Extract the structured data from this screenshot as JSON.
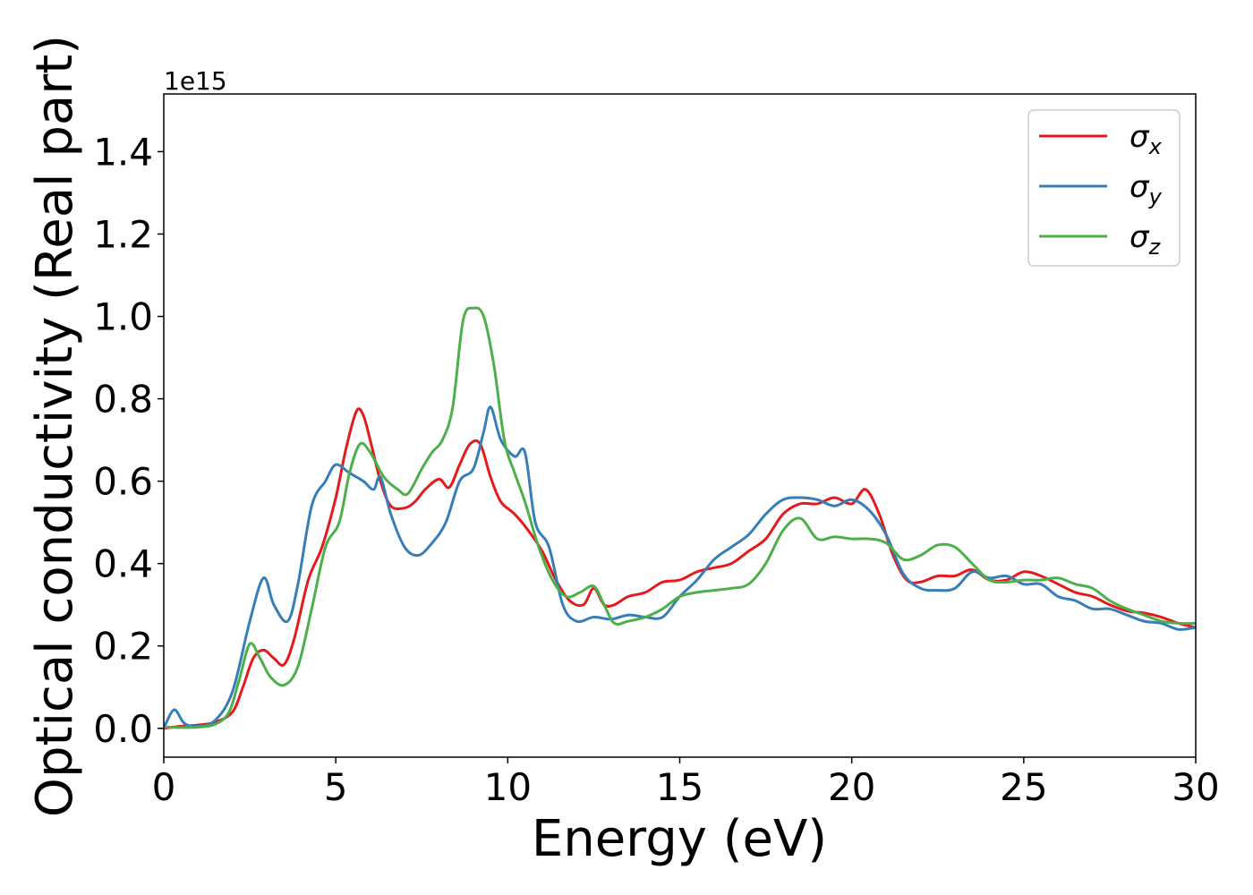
{
  "chart_data": {
    "type": "line",
    "title": "",
    "xlabel": "Energy (eV)",
    "ylabel": "Optical conductivity (Real part)",
    "y_offset_text": "1e15",
    "y_multiplier": 1000000000000000.0,
    "xlim": [
      0,
      30
    ],
    "ylim": [
      -0.07,
      1.54
    ],
    "x_ticks": [
      0,
      5,
      10,
      15,
      20,
      25,
      30
    ],
    "x_tick_labels": [
      "0",
      "5",
      "10",
      "15",
      "20",
      "25",
      "30"
    ],
    "y_ticks": [
      0.0,
      0.2,
      0.4,
      0.6,
      0.8,
      1.0,
      1.2,
      1.4
    ],
    "y_tick_labels": [
      "0.0",
      "0.2",
      "0.4",
      "0.6",
      "0.8",
      "1.0",
      "1.2",
      "1.4"
    ],
    "grid": false,
    "legend_position": "top-right",
    "series": [
      {
        "name": "σx",
        "legend_base": "σ",
        "legend_sub": "x",
        "color": "#e41a1c",
        "x": [
          0,
          0.5,
          1,
          1.5,
          2,
          2.3,
          2.6,
          2.9,
          3.2,
          3.5,
          3.8,
          4.2,
          4.6,
          5.0,
          5.3,
          5.6,
          5.8,
          6.0,
          6.3,
          6.6,
          7.0,
          7.3,
          7.6,
          8.0,
          8.3,
          8.6,
          8.9,
          9.2,
          9.5,
          9.8,
          10.2,
          10.6,
          11.0,
          11.4,
          11.8,
          12.2,
          12.5,
          12.8,
          13.1,
          13.5,
          14.0,
          14.5,
          15.0,
          15.5,
          16.0,
          16.5,
          17.0,
          17.5,
          18.0,
          18.5,
          19.0,
          19.5,
          20.0,
          20.4,
          20.8,
          21.2,
          21.6,
          22.0,
          22.5,
          23.0,
          23.5,
          24.0,
          24.5,
          25.0,
          25.5,
          26.0,
          26.5,
          27.0,
          27.5,
          28.0,
          28.5,
          29.0,
          29.5,
          30.0
        ],
        "y": [
          0.0,
          0.005,
          0.008,
          0.015,
          0.04,
          0.1,
          0.17,
          0.19,
          0.17,
          0.155,
          0.22,
          0.36,
          0.44,
          0.56,
          0.68,
          0.77,
          0.76,
          0.7,
          0.6,
          0.54,
          0.535,
          0.55,
          0.58,
          0.605,
          0.585,
          0.64,
          0.69,
          0.69,
          0.61,
          0.55,
          0.52,
          0.48,
          0.43,
          0.36,
          0.31,
          0.3,
          0.34,
          0.3,
          0.3,
          0.32,
          0.33,
          0.355,
          0.36,
          0.38,
          0.39,
          0.4,
          0.43,
          0.46,
          0.52,
          0.545,
          0.545,
          0.56,
          0.545,
          0.58,
          0.52,
          0.42,
          0.36,
          0.355,
          0.37,
          0.37,
          0.385,
          0.36,
          0.36,
          0.38,
          0.37,
          0.35,
          0.33,
          0.32,
          0.3,
          0.285,
          0.28,
          0.27,
          0.255,
          0.245
        ]
      },
      {
        "name": "σy",
        "legend_base": "σ",
        "legend_sub": "y",
        "color": "#377eb8",
        "x": [
          0,
          0.3,
          0.6,
          1.0,
          1.5,
          2.0,
          2.5,
          2.9,
          3.2,
          3.6,
          3.9,
          4.3,
          4.7,
          5.0,
          5.4,
          5.8,
          6.1,
          6.3,
          6.6,
          7.0,
          7.4,
          7.8,
          8.2,
          8.6,
          9.0,
          9.3,
          9.5,
          9.8,
          10.2,
          10.5,
          10.8,
          11.2,
          11.6,
          12.0,
          12.5,
          13.0,
          13.5,
          14.0,
          14.5,
          15.0,
          15.5,
          16.0,
          16.5,
          17.0,
          17.5,
          18.0,
          18.5,
          19.0,
          19.5,
          20.0,
          20.5,
          21.0,
          21.5,
          22.0,
          22.5,
          23.0,
          23.5,
          24.0,
          24.5,
          25.0,
          25.5,
          26.0,
          26.5,
          27.0,
          27.5,
          28.0,
          28.5,
          29.0,
          29.5,
          30.0
        ],
        "y": [
          0.0,
          0.045,
          0.012,
          0.005,
          0.02,
          0.09,
          0.26,
          0.365,
          0.3,
          0.26,
          0.35,
          0.54,
          0.6,
          0.64,
          0.62,
          0.6,
          0.58,
          0.61,
          0.52,
          0.44,
          0.42,
          0.45,
          0.5,
          0.6,
          0.63,
          0.72,
          0.78,
          0.7,
          0.66,
          0.67,
          0.5,
          0.44,
          0.3,
          0.26,
          0.27,
          0.265,
          0.275,
          0.27,
          0.27,
          0.32,
          0.36,
          0.41,
          0.44,
          0.47,
          0.52,
          0.555,
          0.56,
          0.555,
          0.54,
          0.555,
          0.53,
          0.47,
          0.375,
          0.34,
          0.335,
          0.34,
          0.38,
          0.365,
          0.37,
          0.35,
          0.35,
          0.32,
          0.31,
          0.29,
          0.29,
          0.275,
          0.26,
          0.255,
          0.24,
          0.245
        ]
      },
      {
        "name": "σz",
        "legend_base": "σ",
        "legend_sub": "z",
        "color": "#4daf4a",
        "x": [
          0,
          0.5,
          1,
          1.5,
          1.9,
          2.2,
          2.5,
          2.8,
          3.1,
          3.5,
          3.9,
          4.3,
          4.7,
          5.1,
          5.4,
          5.7,
          6.0,
          6.4,
          6.8,
          7.1,
          7.5,
          7.8,
          8.1,
          8.4,
          8.7,
          9.0,
          9.3,
          9.6,
          9.9,
          10.2,
          10.5,
          10.9,
          11.3,
          11.7,
          12.1,
          12.5,
          12.8,
          13.1,
          13.5,
          14.0,
          14.5,
          15.0,
          15.5,
          16.0,
          16.5,
          17.0,
          17.5,
          18.0,
          18.5,
          19.0,
          19.5,
          20.0,
          20.5,
          21.0,
          21.5,
          22.0,
          22.5,
          23.0,
          23.5,
          24.0,
          24.5,
          25.0,
          25.5,
          26.0,
          26.5,
          27.0,
          27.5,
          28.0,
          28.5,
          29.0,
          29.5,
          30.0
        ],
        "y": [
          0.003,
          0.002,
          0.003,
          0.01,
          0.04,
          0.12,
          0.205,
          0.17,
          0.125,
          0.105,
          0.15,
          0.29,
          0.44,
          0.5,
          0.62,
          0.69,
          0.67,
          0.61,
          0.58,
          0.57,
          0.63,
          0.67,
          0.7,
          0.78,
          0.99,
          1.02,
          1.0,
          0.88,
          0.7,
          0.62,
          0.55,
          0.44,
          0.36,
          0.32,
          0.33,
          0.345,
          0.3,
          0.255,
          0.26,
          0.27,
          0.29,
          0.32,
          0.33,
          0.335,
          0.34,
          0.35,
          0.4,
          0.48,
          0.51,
          0.46,
          0.465,
          0.46,
          0.46,
          0.45,
          0.41,
          0.42,
          0.445,
          0.44,
          0.4,
          0.36,
          0.355,
          0.36,
          0.36,
          0.365,
          0.35,
          0.34,
          0.31,
          0.29,
          0.275,
          0.26,
          0.255,
          0.255
        ]
      }
    ]
  }
}
